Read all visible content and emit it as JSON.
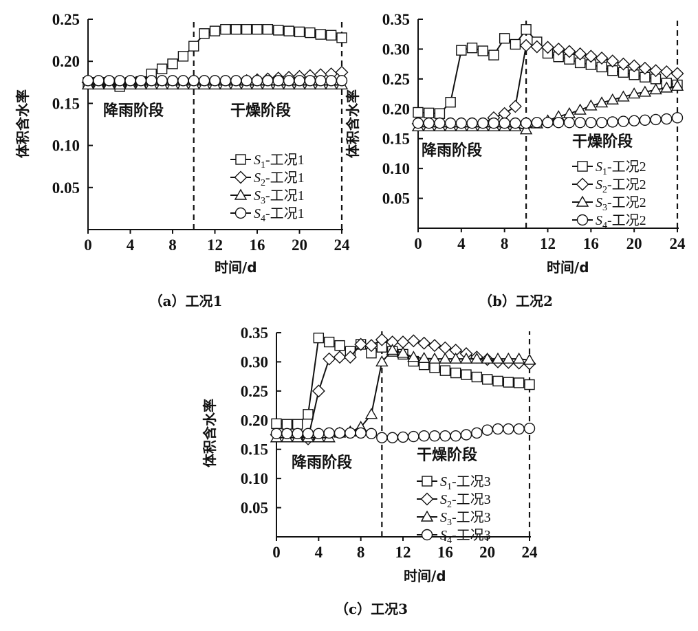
{
  "chart_data": [
    {
      "type": "line",
      "caption": "（a）工况1",
      "xlabel": "时间/d",
      "ylabel": "体积含水率",
      "xlim": [
        0,
        24
      ],
      "ylim": [
        0,
        0.25
      ],
      "xticks": [
        "0",
        "4",
        "8",
        "12",
        "16",
        "20",
        "24"
      ],
      "yticks": [
        "0.05",
        "0.10",
        "0.15",
        "0.20",
        "0.25"
      ],
      "annotations": [
        "降雨阶段",
        "干燥阶段"
      ],
      "divider_x": [
        10,
        24
      ],
      "legend_position": "lower-right",
      "x": [
        0,
        1,
        2,
        3,
        4,
        5,
        6,
        7,
        8,
        9,
        10,
        11,
        12,
        13,
        14,
        15,
        16,
        17,
        18,
        19,
        20,
        21,
        22,
        23,
        24
      ],
      "series": [
        {
          "name": "S1-工况1",
          "marker": "square",
          "values": [
            0.175,
            0.175,
            0.175,
            0.17,
            0.175,
            0.176,
            0.185,
            0.191,
            0.197,
            0.206,
            0.218,
            0.233,
            0.236,
            0.238,
            0.238,
            0.238,
            0.238,
            0.238,
            0.237,
            0.236,
            0.235,
            0.234,
            0.232,
            0.231,
            0.228
          ]
        },
        {
          "name": "S2-工况1",
          "marker": "diamond",
          "values": [
            0.175,
            0.175,
            0.175,
            0.175,
            0.175,
            0.175,
            0.175,
            0.175,
            0.175,
            0.175,
            0.175,
            0.175,
            0.175,
            0.175,
            0.175,
            0.177,
            0.178,
            0.179,
            0.18,
            0.181,
            0.182,
            0.183,
            0.184,
            0.185,
            0.187
          ]
        },
        {
          "name": "S3-工况1",
          "marker": "triangle",
          "values": [
            0.172,
            0.172,
            0.172,
            0.172,
            0.172,
            0.172,
            0.172,
            0.172,
            0.172,
            0.172,
            0.172,
            0.172,
            0.172,
            0.172,
            0.172,
            0.172,
            0.172,
            0.172,
            0.172,
            0.172,
            0.172,
            0.172,
            0.172,
            0.172,
            0.172
          ]
        },
        {
          "name": "S4-工况1",
          "marker": "circle",
          "values": [
            0.177,
            0.177,
            0.177,
            0.177,
            0.177,
            0.177,
            0.177,
            0.177,
            0.177,
            0.177,
            0.177,
            0.177,
            0.177,
            0.177,
            0.177,
            0.177,
            0.177,
            0.177,
            0.177,
            0.177,
            0.177,
            0.177,
            0.177,
            0.177,
            0.177
          ]
        }
      ]
    },
    {
      "type": "line",
      "caption": "（b）工况2",
      "xlabel": "时间/d",
      "ylabel": "体积含水率",
      "xlim": [
        0,
        24
      ],
      "ylim": [
        0,
        0.35
      ],
      "xticks": [
        "0",
        "4",
        "8",
        "12",
        "16",
        "20",
        "24"
      ],
      "yticks": [
        "0.05",
        "0.10",
        "0.15",
        "0.20",
        "0.25",
        "0.30",
        "0.35"
      ],
      "annotations": [
        "降雨阶段",
        "干燥阶段"
      ],
      "divider_x": [
        10,
        24
      ],
      "legend_position": "lower-right",
      "x": [
        0,
        1,
        2,
        3,
        4,
        5,
        6,
        7,
        8,
        9,
        10,
        11,
        12,
        13,
        14,
        15,
        16,
        17,
        18,
        19,
        20,
        21,
        22,
        23,
        24
      ],
      "series": [
        {
          "name": "S1-工况2",
          "marker": "square",
          "values": [
            0.194,
            0.193,
            0.192,
            0.211,
            0.298,
            0.302,
            0.297,
            0.29,
            0.318,
            0.308,
            0.333,
            0.312,
            0.293,
            0.287,
            0.283,
            0.277,
            0.274,
            0.27,
            0.264,
            0.261,
            0.257,
            0.253,
            0.25,
            0.243,
            0.24
          ]
        },
        {
          "name": "S2-工况2",
          "marker": "diamond",
          "values": [
            0.175,
            0.175,
            0.175,
            0.175,
            0.175,
            0.175,
            0.175,
            0.185,
            0.192,
            0.204,
            0.306,
            0.304,
            0.303,
            0.3,
            0.296,
            0.292,
            0.288,
            0.285,
            0.28,
            0.275,
            0.272,
            0.268,
            0.264,
            0.262,
            0.259
          ]
        },
        {
          "name": "S3-工况2",
          "marker": "triangle",
          "values": [
            0.17,
            0.17,
            0.17,
            0.17,
            0.17,
            0.17,
            0.17,
            0.17,
            0.17,
            0.17,
            0.165,
            0.175,
            0.18,
            0.187,
            0.192,
            0.198,
            0.205,
            0.21,
            0.215,
            0.22,
            0.225,
            0.228,
            0.232,
            0.235,
            0.238
          ]
        },
        {
          "name": "S4-工况2",
          "marker": "circle",
          "values": [
            0.176,
            0.176,
            0.176,
            0.176,
            0.176,
            0.176,
            0.176,
            0.176,
            0.176,
            0.176,
            0.176,
            0.177,
            0.177,
            0.177,
            0.177,
            0.177,
            0.177,
            0.177,
            0.178,
            0.179,
            0.18,
            0.181,
            0.182,
            0.183,
            0.185
          ]
        }
      ]
    },
    {
      "type": "line",
      "caption": "（c）工况3",
      "xlabel": "时间/d",
      "ylabel": "体积含水率",
      "xlim": [
        0,
        24
      ],
      "ylim": [
        0,
        0.35
      ],
      "xticks": [
        "0",
        "4",
        "8",
        "12",
        "16",
        "20",
        "24"
      ],
      "yticks": [
        "0.05",
        "0.10",
        "0.15",
        "0.20",
        "0.25",
        "0.30",
        "0.35"
      ],
      "annotations": [
        "降雨阶段",
        "干燥阶段"
      ],
      "divider_x": [
        10,
        24
      ],
      "legend_position": "lower-right",
      "x": [
        0,
        1,
        2,
        3,
        4,
        5,
        6,
        7,
        8,
        9,
        10,
        11,
        12,
        13,
        14,
        15,
        16,
        17,
        18,
        19,
        20,
        21,
        22,
        23,
        24
      ],
      "series": [
        {
          "name": "S1-工况3",
          "marker": "square",
          "values": [
            0.194,
            0.193,
            0.193,
            0.21,
            0.341,
            0.334,
            0.328,
            0.318,
            0.33,
            0.315,
            0.325,
            0.318,
            0.313,
            0.301,
            0.295,
            0.29,
            0.285,
            0.281,
            0.278,
            0.274,
            0.27,
            0.267,
            0.265,
            0.264,
            0.261
          ]
        },
        {
          "name": "S2-工况3",
          "marker": "diamond",
          "values": [
            0.175,
            0.175,
            0.175,
            0.168,
            0.25,
            0.305,
            0.308,
            0.308,
            0.33,
            0.328,
            0.338,
            0.334,
            0.334,
            0.336,
            0.332,
            0.328,
            0.324,
            0.32,
            0.314,
            0.308,
            0.304,
            0.3,
            0.299,
            0.298,
            0.297
          ]
        },
        {
          "name": "S3-工况3",
          "marker": "triangle",
          "values": [
            0.17,
            0.17,
            0.17,
            0.17,
            0.17,
            0.17,
            0.178,
            0.18,
            0.188,
            0.21,
            0.3,
            0.32,
            0.315,
            0.308,
            0.306,
            0.305,
            0.305,
            0.305,
            0.305,
            0.305,
            0.305,
            0.305,
            0.305,
            0.305,
            0.303
          ]
        },
        {
          "name": "S4-工况3",
          "marker": "circle",
          "values": [
            0.177,
            0.177,
            0.177,
            0.177,
            0.177,
            0.178,
            0.178,
            0.178,
            0.178,
            0.177,
            0.17,
            0.17,
            0.171,
            0.172,
            0.173,
            0.173,
            0.173,
            0.173,
            0.175,
            0.178,
            0.183,
            0.185,
            0.185,
            0.185,
            0.186
          ]
        }
      ]
    }
  ]
}
